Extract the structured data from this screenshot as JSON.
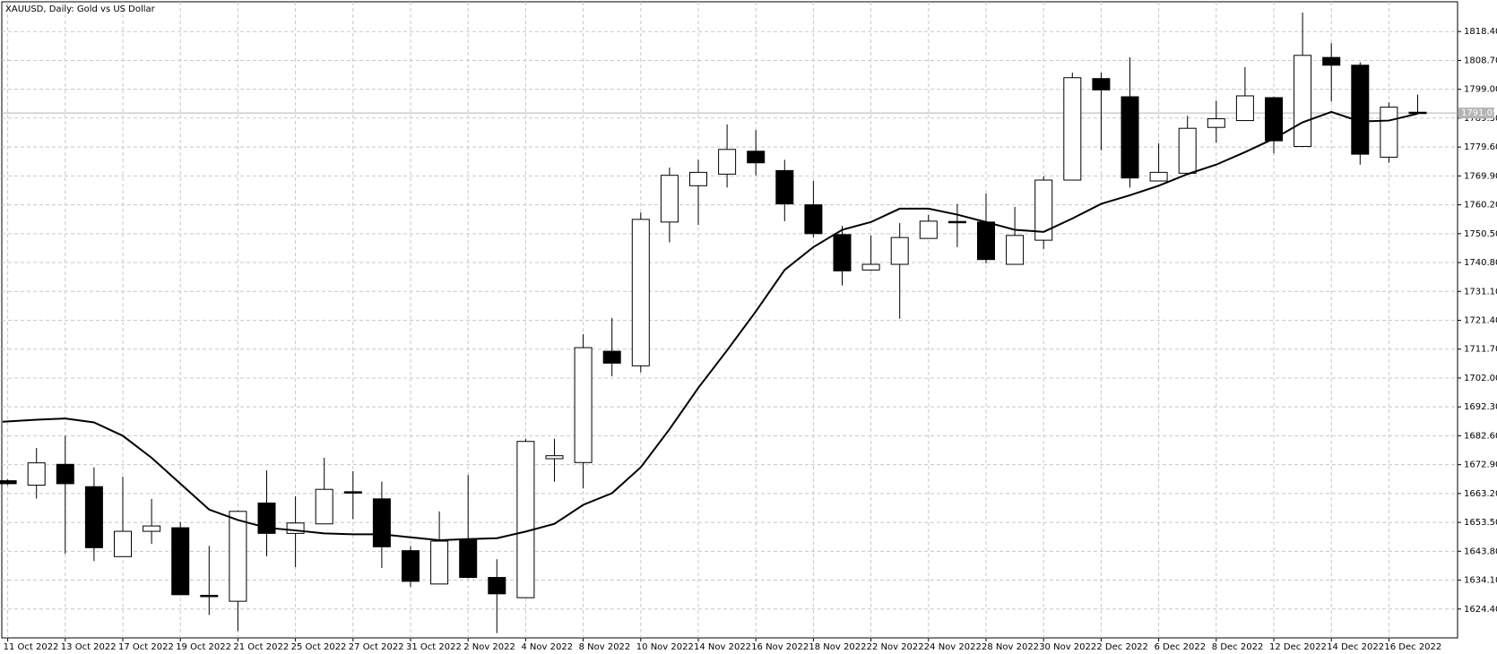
{
  "chart_data": {
    "type": "candlestick",
    "title": "XAUUSD, Daily:  Gold vs US Dollar",
    "categories": [
      "11 Oct 2022",
      null,
      "13 Oct 2022",
      null,
      "17 Oct 2022",
      null,
      "19 Oct 2022",
      null,
      "21 Oct 2022",
      null,
      "25 Oct 2022",
      null,
      "27 Oct 2022",
      null,
      "31 Oct 2022",
      null,
      "2 Nov 2022",
      null,
      "4 Nov 2022",
      null,
      "8 Nov 2022",
      null,
      "10 Nov 2022",
      null,
      "14 Nov 2022",
      null,
      "16 Nov 2022",
      null,
      "18 Nov 2022",
      null,
      "22 Nov 2022",
      null,
      "24 Nov 2022",
      null,
      "28 Nov 2022",
      null,
      "30 Nov 2022",
      null,
      "2 Dec 2022",
      null,
      "6 Dec 2022",
      null,
      "8 Dec 2022",
      null,
      "12 Dec 2022",
      null,
      "14 Dec 2022",
      null,
      "16 Dec 2022",
      null
    ],
    "open": [
      1667.5,
      1666,
      1673,
      1665.5,
      1642,
      1650.5,
      1651.7,
      1629,
      1627,
      1660,
      1649.8,
      1653,
      1663.8,
      1661.4,
      1644,
      1632.8,
      1647.5,
      1635,
      1628.2,
      1674.9,
      1673.6,
      1711,
      1706.1,
      1754.4,
      1766.6,
      1770.5,
      1778.2,
      1771.7,
      1760.2,
      1750.2,
      1738.3,
      1740.2,
      1748.9,
      1754.6,
      1754.4,
      1740.2,
      1748.3,
      1768.5,
      1802.6,
      1796.5,
      1768.2,
      1770.8,
      1786.2,
      1788.5,
      1796.2,
      1779.8,
      1809.7,
      1807.1,
      1776.2,
      1791.3
    ],
    "high": [
      1668,
      1678.5,
      1682.6,
      1672,
      1668.8,
      1661.4,
      1653.7,
      1645.6,
      1657.5,
      1671,
      1662.3,
      1675.2,
      1670.7,
      1667.2,
      1645.6,
      1657.2,
      1669.4,
      1641.1,
      1681.6,
      1681.6,
      1716.7,
      1722.2,
      1757.6,
      1772.7,
      1775.3,
      1787.2,
      1785.3,
      1775.3,
      1768.2,
      1753.1,
      1749.9,
      1754.1,
      1756.9,
      1760.5,
      1764,
      1759.5,
      1769.8,
      1804.6,
      1804.6,
      1809.7,
      1780.8,
      1790.1,
      1795.2,
      1806.5,
      1796.5,
      1824.8,
      1814.5,
      1808.1,
      1794.6,
      1797.2
    ],
    "low": [
      1666,
      1661.5,
      1643,
      1640.5,
      1642,
      1646.3,
      1629.2,
      1622.4,
      1617,
      1642.1,
      1638.5,
      1653,
      1654.6,
      1638.2,
      1631.8,
      1632.8,
      1634.7,
      1616.3,
      1628.2,
      1667.2,
      1664.9,
      1702.6,
      1703.9,
      1747.6,
      1753.4,
      1766,
      1770.1,
      1754.7,
      1749.2,
      1733.1,
      1738,
      1721.9,
      1748.9,
      1746,
      1740.5,
      1740.2,
      1745.4,
      1768.5,
      1778.5,
      1766,
      1768.2,
      1770.8,
      1781.1,
      1788.5,
      1777.5,
      1779.8,
      1794.9,
      1773.7,
      1774.3,
      1790.9
    ],
    "close": [
      1666.5,
      1673.5,
      1666.5,
      1645,
      1650.5,
      1652.3,
      1629.2,
      1628.8,
      1657.2,
      1649.8,
      1653.3,
      1664.6,
      1663.4,
      1645.3,
      1633.7,
      1647.2,
      1635,
      1629.5,
      1680.7,
      1675.9,
      1712.2,
      1707,
      1755.3,
      1770.1,
      1771.1,
      1778.8,
      1774.3,
      1760.5,
      1750.5,
      1738,
      1740.2,
      1749.2,
      1754.7,
      1754.2,
      1741.8,
      1749.9,
      1768.5,
      1802.9,
      1798.8,
      1769.2,
      1771.1,
      1785.9,
      1789.1,
      1796.8,
      1781.7,
      1810.4,
      1807.1,
      1777.2,
      1793,
      1791.05
    ],
    "up_color": "#ffffff",
    "down_color": "#000000",
    "moving_average": {
      "color": "#000000",
      "values": [
        1687.3,
        1688,
        1688.4,
        1687.1,
        1682.6,
        1675.2,
        1666.5,
        1657.8,
        1654.3,
        1651.7,
        1650.8,
        1649.8,
        1649.5,
        1649.5,
        1648.5,
        1647.5,
        1647.9,
        1648.2,
        1650.4,
        1653,
        1659.4,
        1663.3,
        1672,
        1684.8,
        1698.7,
        1711.3,
        1724.4,
        1738.3,
        1746,
        1751.8,
        1754.4,
        1758.9,
        1758.9,
        1756.9,
        1754.4,
        1751.8,
        1751.1,
        1755.6,
        1760.5,
        1763.4,
        1766.6,
        1770.5,
        1773.7,
        1777.9,
        1782.4,
        1787.9,
        1791.4,
        1788.2,
        1788.5,
        1790.8
      ]
    },
    "current_price": 1791.05,
    "ylim": [
      1614.7,
      1828.4
    ],
    "yticks": [
      {
        "value": 1624.4,
        "label": "1624.40"
      },
      {
        "value": 1634.1,
        "label": "1634.10"
      },
      {
        "value": 1643.8,
        "label": "1643.80"
      },
      {
        "value": 1653.5,
        "label": "1653.50"
      },
      {
        "value": 1663.2,
        "label": "1663.20"
      },
      {
        "value": 1672.9,
        "label": "1672.90"
      },
      {
        "value": 1682.6,
        "label": "1682.60"
      },
      {
        "value": 1692.3,
        "label": "1692.30"
      },
      {
        "value": 1702,
        "label": "1702.00"
      },
      {
        "value": 1711.7,
        "label": "1711.70"
      },
      {
        "value": 1721.4,
        "label": "1721.40"
      },
      {
        "value": 1731.1,
        "label": "1731.10"
      },
      {
        "value": 1740.8,
        "label": "1740.80"
      },
      {
        "value": 1750.5,
        "label": "1750.50"
      },
      {
        "value": 1760.2,
        "label": "1760.20"
      },
      {
        "value": 1769.9,
        "label": "1769.90"
      },
      {
        "value": 1779.6,
        "label": "1779.60"
      },
      {
        "value": 1789.3,
        "label": "1789.30"
      },
      {
        "value": 1799,
        "label": "1799.00"
      },
      {
        "value": 1808.7,
        "label": "1808.70"
      },
      {
        "value": 1818.4,
        "label": "1818.40"
      }
    ],
    "grid": true
  }
}
